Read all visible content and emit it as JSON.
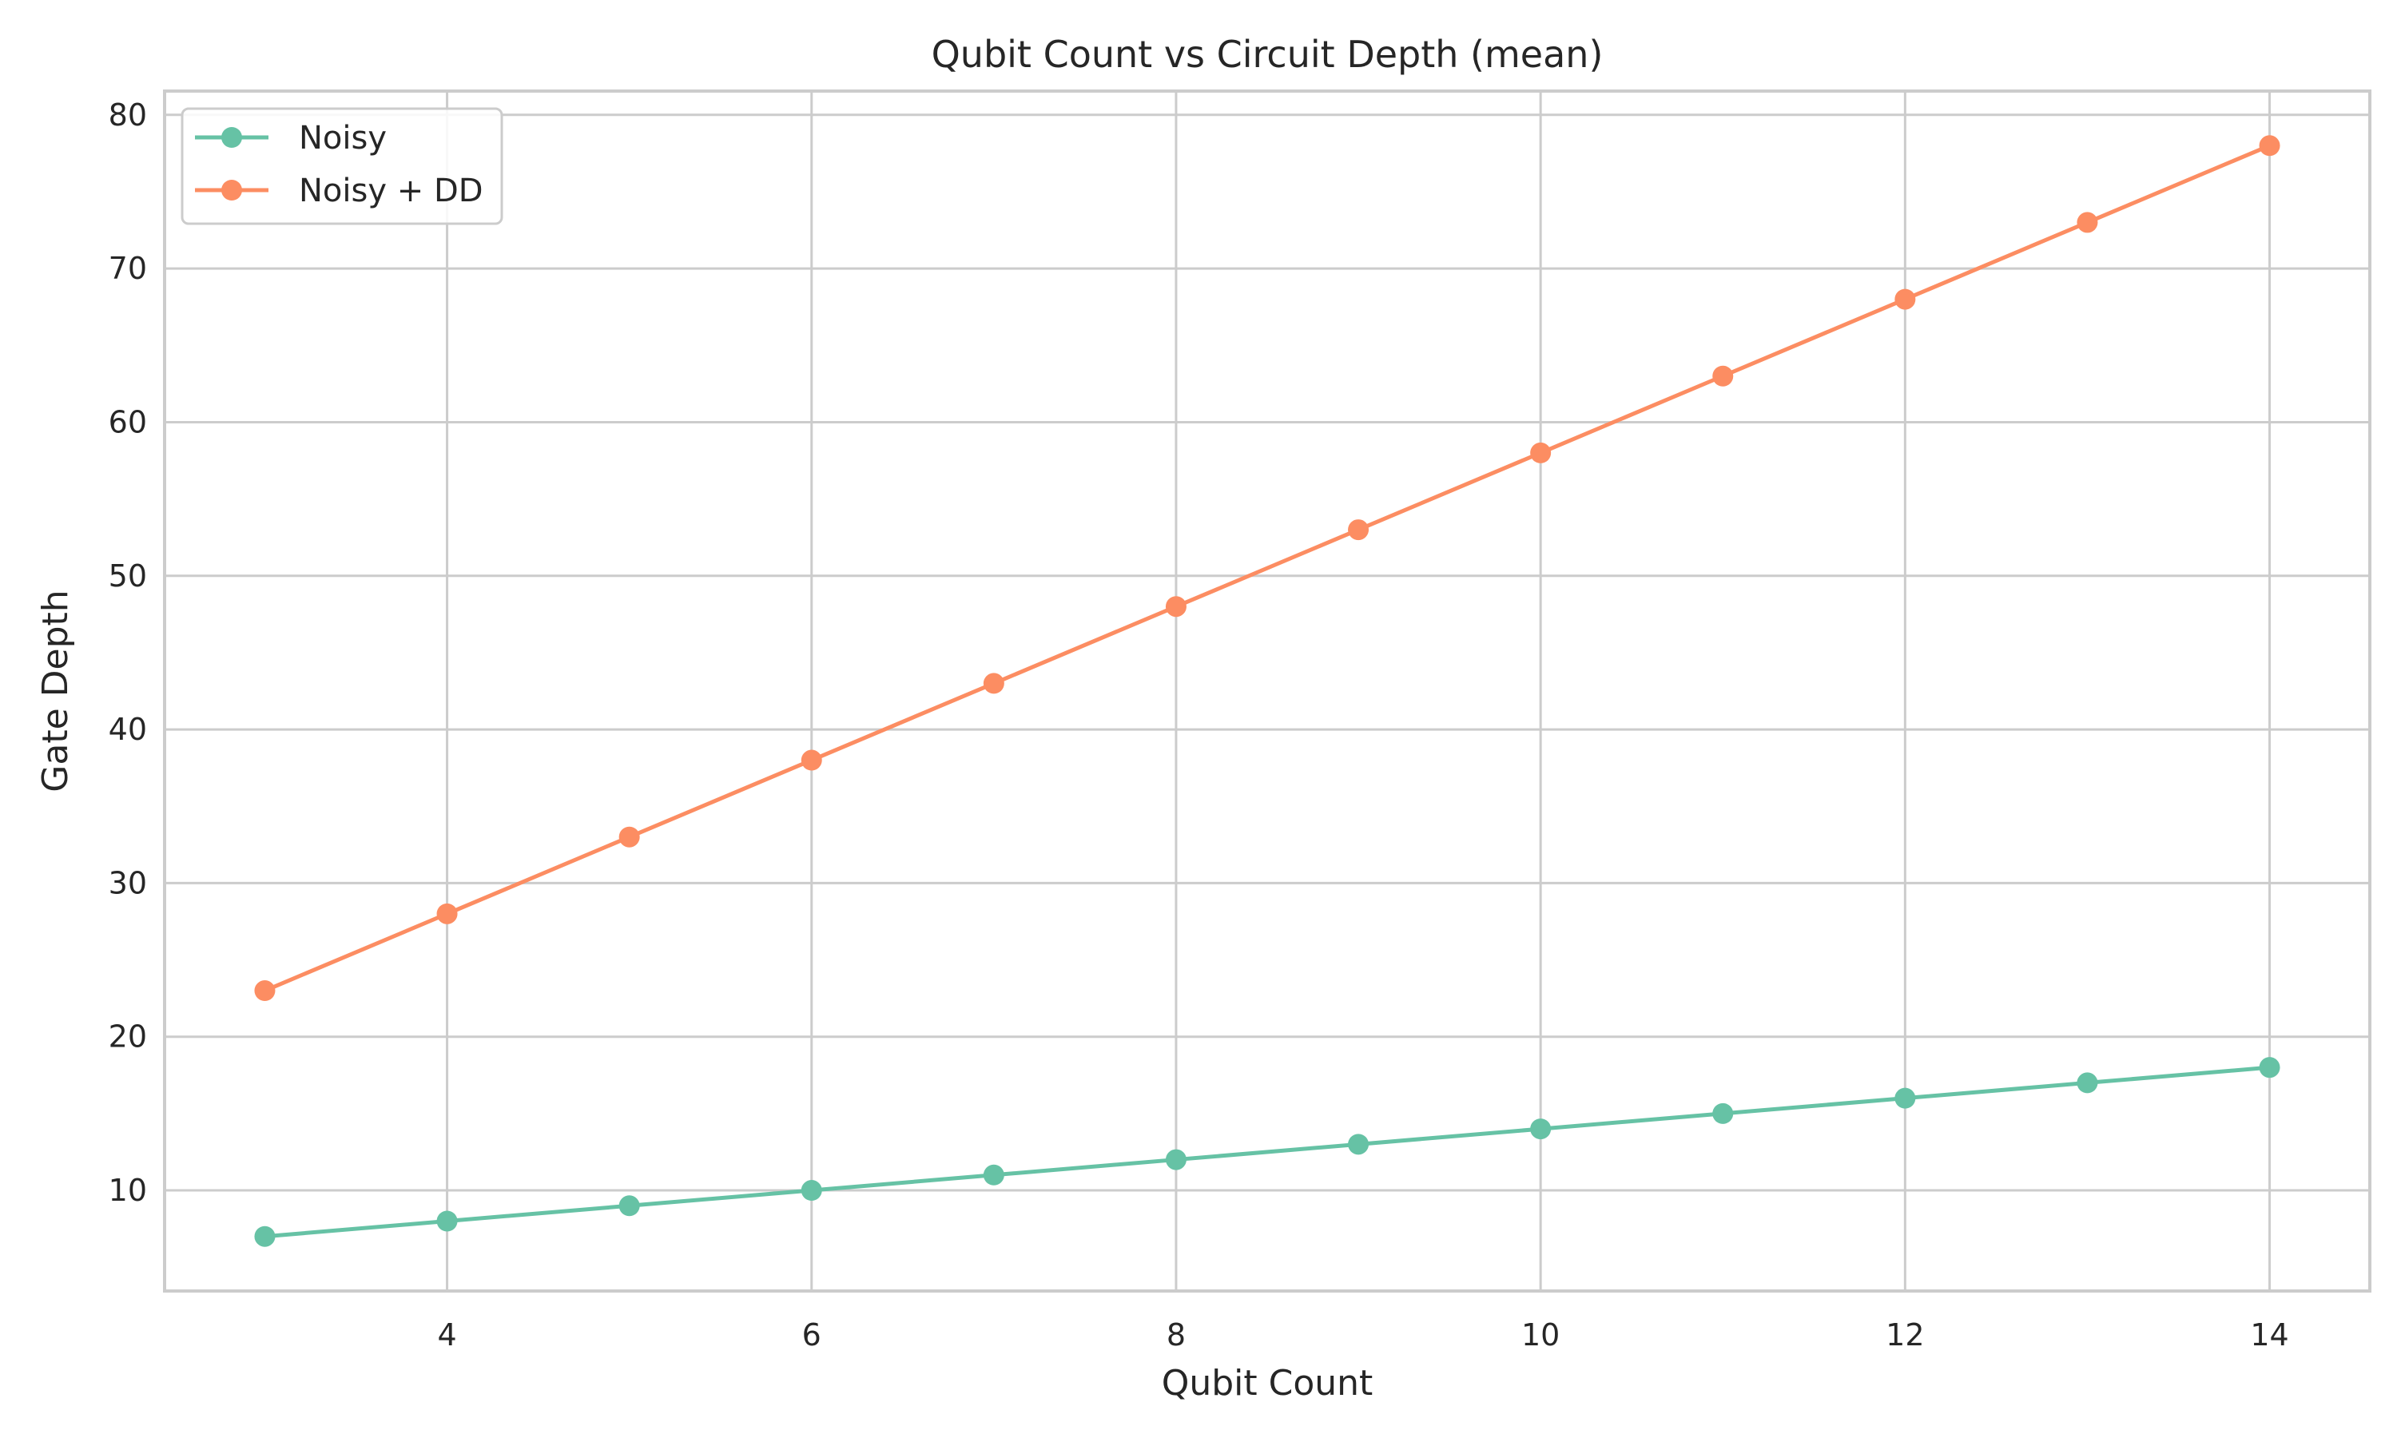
{
  "chart_data": {
    "type": "line",
    "title": "Qubit Count vs Circuit Depth (mean)",
    "xlabel": "Qubit Count",
    "ylabel": "Gate Depth",
    "x": [
      3,
      4,
      5,
      6,
      7,
      8,
      9,
      10,
      11,
      12,
      13,
      14
    ],
    "xlim": [
      2.45,
      14.55
    ],
    "ylim": [
      3.45,
      81.55
    ],
    "xticks": [
      4,
      6,
      8,
      10,
      12,
      14
    ],
    "yticks": [
      10,
      20,
      30,
      40,
      50,
      60,
      70,
      80
    ],
    "grid": true,
    "legend_position": "top-left",
    "series": [
      {
        "name": "Noisy",
        "color": "#66c2a5",
        "values": [
          7,
          8,
          9,
          10,
          11,
          12,
          13,
          14,
          15,
          16,
          17,
          18
        ]
      },
      {
        "name": "Noisy + DD",
        "color": "#fc8d62",
        "values": [
          23,
          28,
          33,
          38,
          43,
          48,
          53,
          58,
          63,
          68,
          73,
          78
        ]
      }
    ]
  }
}
